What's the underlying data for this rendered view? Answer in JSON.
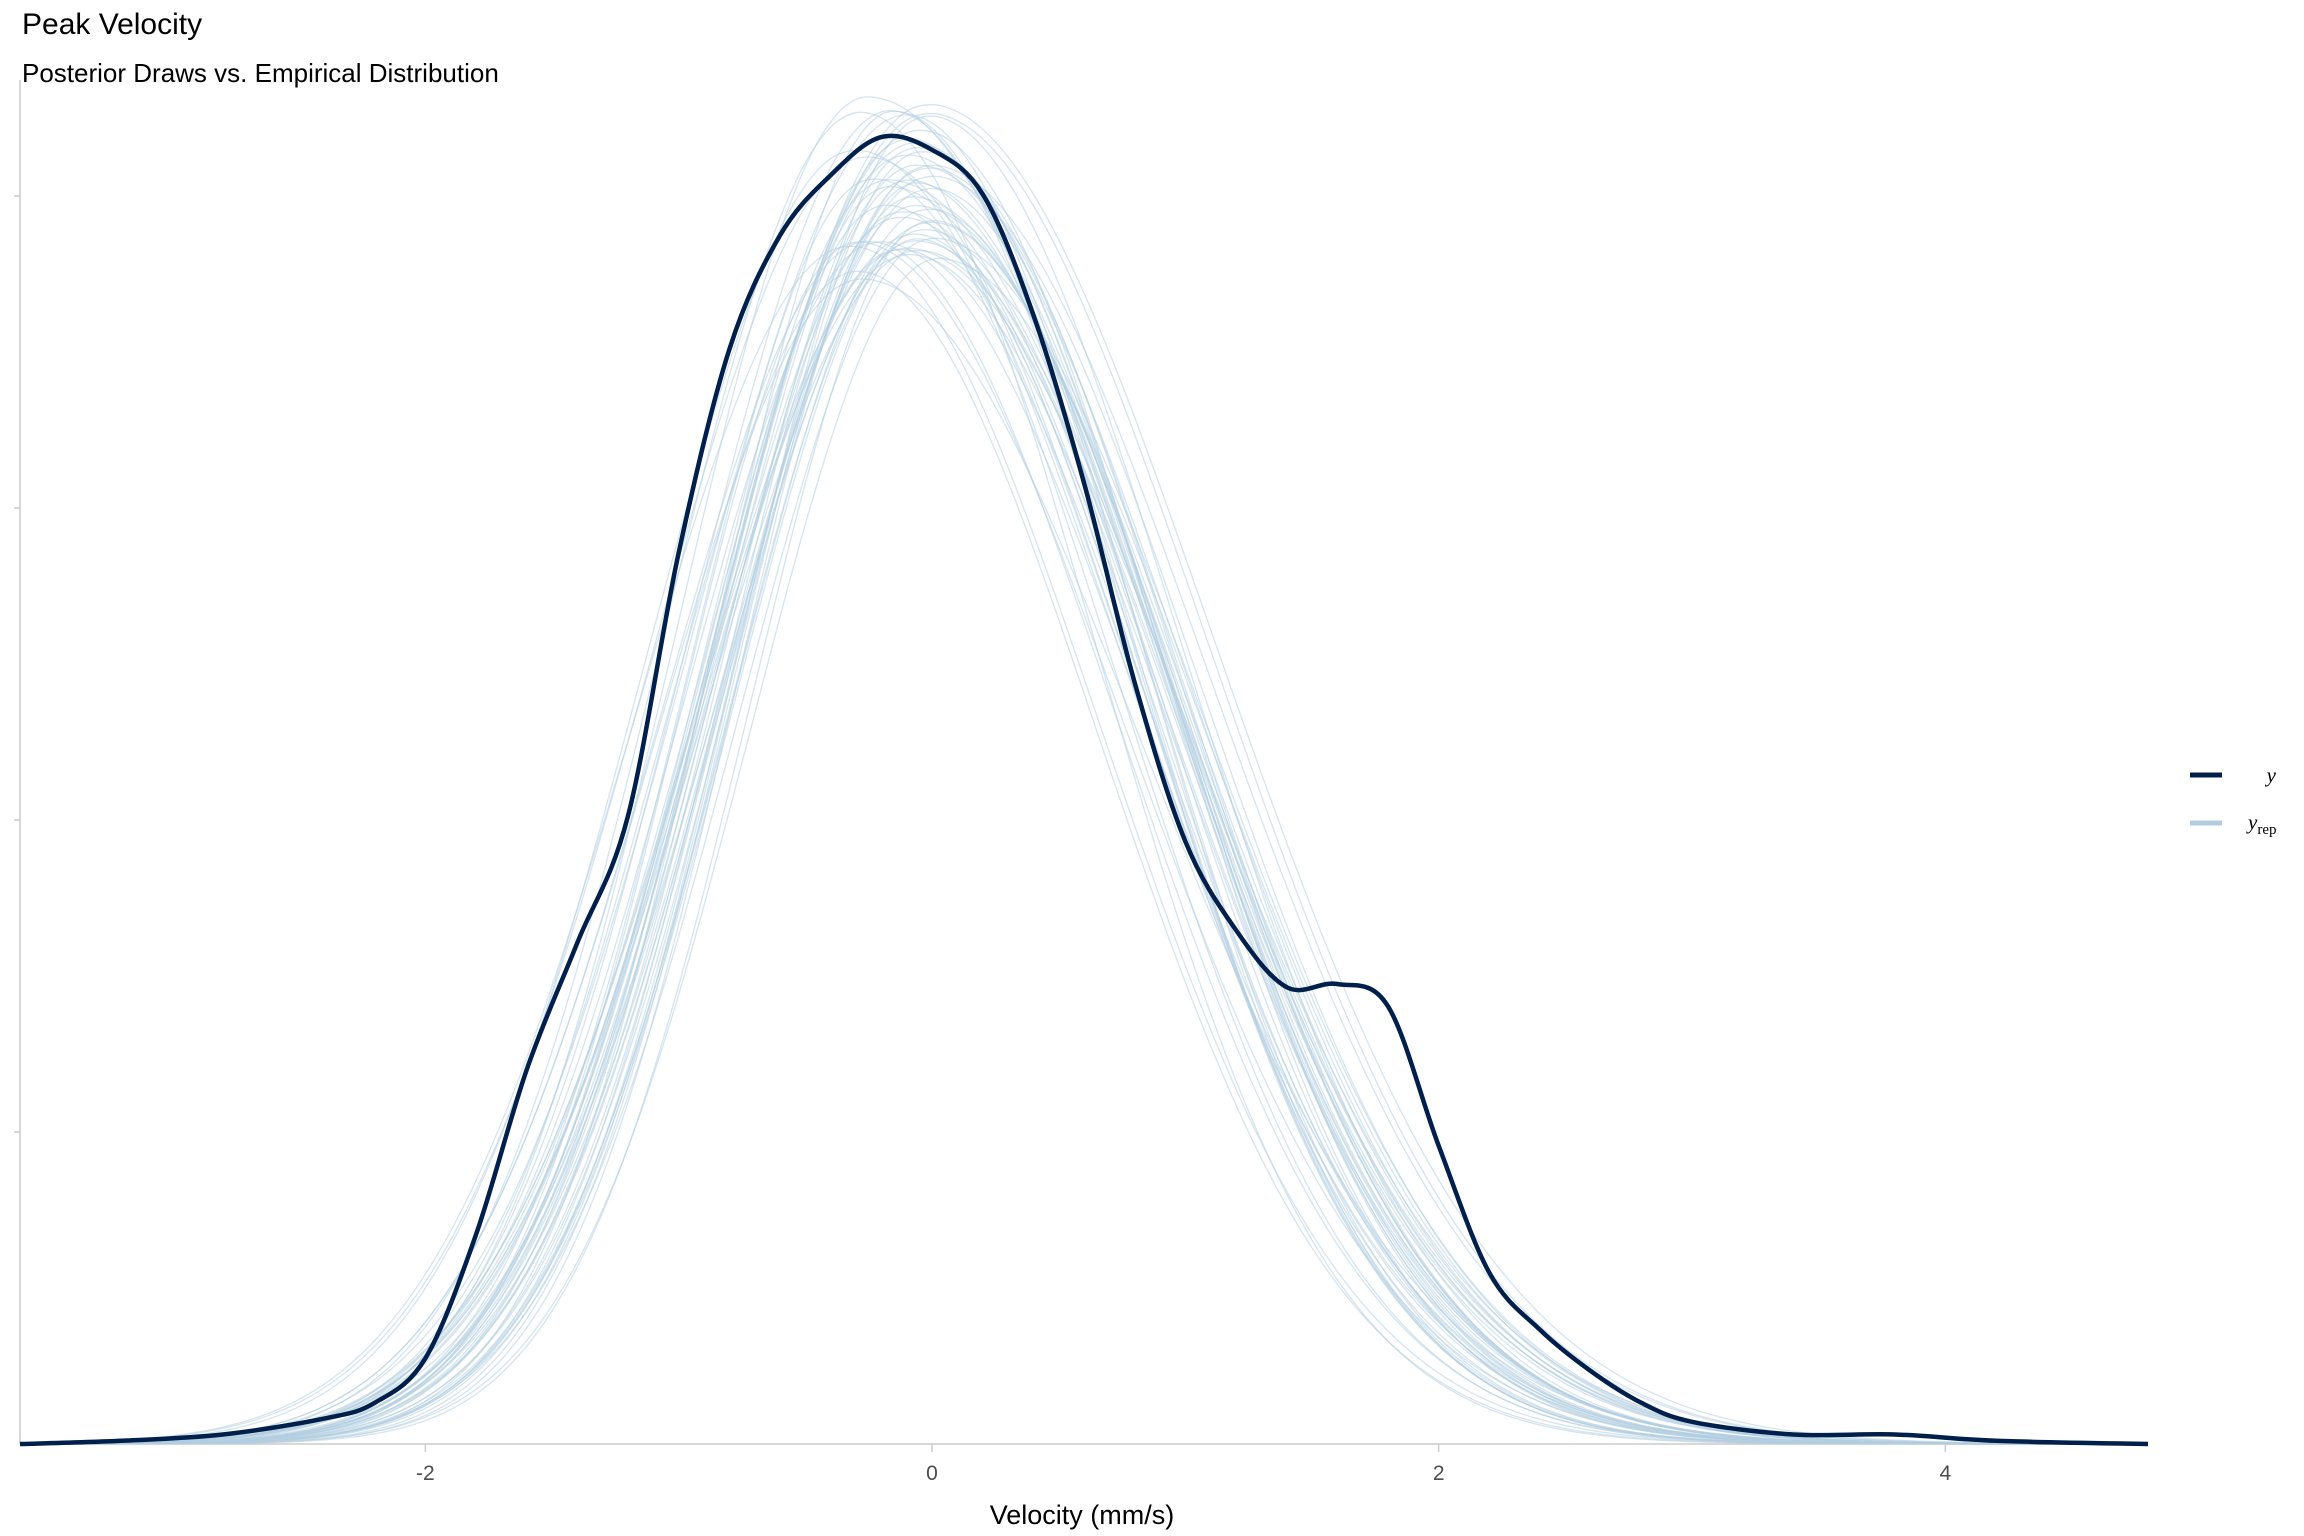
{
  "chart_data": {
    "type": "line",
    "title": "Peak Velocity",
    "subtitle": "Posterior Draws vs. Empirical Distribution",
    "xlabel": "Velocity (mm/s)",
    "ylabel": "",
    "xlim": [
      -3.6,
      4.8
    ],
    "ylim": [
      0,
      0.43
    ],
    "xticks": [
      -2,
      0,
      2,
      4
    ],
    "xtick_labels": [
      "-2",
      "0",
      "2",
      "4"
    ],
    "grid": false,
    "legend_position": "right",
    "series": [
      {
        "name": "y",
        "role": "observed",
        "color": "#011f4b",
        "x": [
          -3.6,
          -3.2,
          -2.8,
          -2.4,
          -2.2,
          -2.0,
          -1.8,
          -1.6,
          -1.4,
          -1.2,
          -1.0,
          -0.8,
          -0.6,
          -0.4,
          -0.2,
          0.0,
          0.2,
          0.4,
          0.6,
          0.8,
          1.0,
          1.2,
          1.4,
          1.6,
          1.8,
          2.0,
          2.2,
          2.4,
          2.6,
          2.8,
          3.0,
          3.4,
          3.8,
          4.2,
          4.8
        ],
        "values": [
          0.0,
          0.001,
          0.003,
          0.008,
          0.013,
          0.027,
          0.066,
          0.118,
          0.158,
          0.198,
          0.281,
          0.345,
          0.381,
          0.4,
          0.412,
          0.408,
          0.394,
          0.356,
          0.303,
          0.24,
          0.19,
          0.162,
          0.144,
          0.145,
          0.138,
          0.094,
          0.054,
          0.036,
          0.023,
          0.013,
          0.007,
          0.003,
          0.003,
          0.001,
          0.0
        ]
      }
    ],
    "replicates": {
      "name": "y_rep",
      "name_main": "y",
      "name_sub": "rep",
      "color": "#b3cde0",
      "count": 50,
      "note": "posterior predictive draws"
    }
  }
}
